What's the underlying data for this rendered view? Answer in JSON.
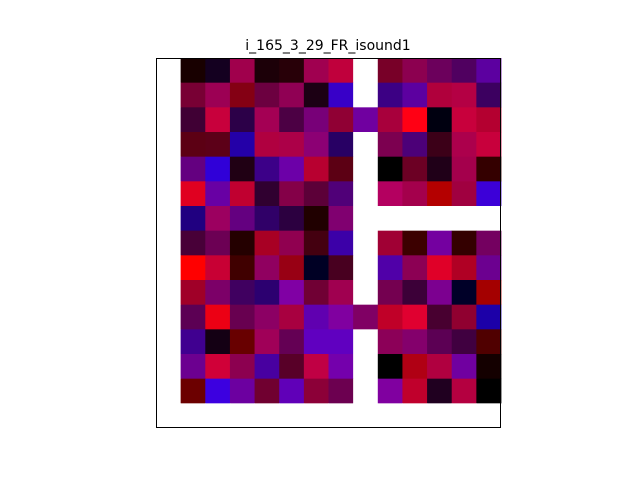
{
  "chart_data": {
    "type": "heatmap",
    "title": "i_165_3_29_FR_isound1",
    "xlabel": "",
    "ylabel": "",
    "axes_visible": false,
    "n_cols": 14,
    "n_rows": 15,
    "empty_color": "#ffffff",
    "frame_color": "#000000",
    "cells": [
      [
        "#ffffff",
        "#180000",
        "#140020",
        "#a0004c",
        "#1c0008",
        "#280008",
        "#a00050",
        "#c0003c",
        "#ffffff",
        "#780028",
        "#8c0050",
        "#6c005c",
        "#500060",
        "#5c00a0"
      ],
      [
        "#ffffff",
        "#780034",
        "#9c0054",
        "#840014",
        "#6c0040",
        "#900054",
        "#1c0014",
        "#3800c8",
        "#ffffff",
        "#3c0084",
        "#5c00a0",
        "#b0003c",
        "#b40044",
        "#3c0060"
      ],
      [
        "#ffffff",
        "#400034",
        "#c8003c",
        "#2c0048",
        "#a40054",
        "#4c0044",
        "#780078",
        "#900034",
        "#7000a0",
        "#a8003c",
        "#ff0014",
        "#000010",
        "#c8003c",
        "#b40030"
      ],
      [
        "#ffffff",
        "#5c0014",
        "#5c0018",
        "#2400a8",
        "#b00040",
        "#ac0048",
        "#8c0074",
        "#280064",
        "#ffffff",
        "#7c0050",
        "#4c0078",
        "#3c0018",
        "#ac004c",
        "#c8003c"
      ],
      [
        "#ffffff",
        "#640080",
        "#3000d8",
        "#200014",
        "#3c0088",
        "#6c00a8",
        "#b80030",
        "#5c0014",
        "#ffffff",
        "#000000",
        "#6c0024",
        "#200018",
        "#a4004c",
        "#340000"
      ],
      [
        "#ffffff",
        "#e00020",
        "#6800a4",
        "#c00030",
        "#300030",
        "#840048",
        "#5c0038",
        "#500078",
        "#ffffff",
        "#b40060",
        "#a4004c",
        "#b40000",
        "#a00040",
        "#3c00d8"
      ],
      [
        "#ffffff",
        "#200080",
        "#9c0060",
        "#640080",
        "#300068",
        "#2c0040",
        "#200000",
        "#800070",
        "#ffffff",
        "#ffffff",
        "#ffffff",
        "#ffffff",
        "#ffffff",
        "#ffffff"
      ],
      [
        "#ffffff",
        "#480038",
        "#6c0054",
        "#240000",
        "#a80024",
        "#900050",
        "#440010",
        "#3c00a8",
        "#ffffff",
        "#a00034",
        "#3c0000",
        "#7400a0",
        "#340000",
        "#740060"
      ],
      [
        "#ffffff",
        "#ff0000",
        "#c80034",
        "#400000",
        "#900060",
        "#980014",
        "#000024",
        "#480020",
        "#ffffff",
        "#5000a8",
        "#8c0054",
        "#e00028",
        "#b00024",
        "#6c0090"
      ],
      [
        "#ffffff",
        "#a00028",
        "#7c0068",
        "#400060",
        "#2c0070",
        "#8000a4",
        "#700034",
        "#a00050",
        "#ffffff",
        "#740050",
        "#3c0038",
        "#7c0090",
        "#000028",
        "#a40000"
      ],
      [
        "#ffffff",
        "#5c0054",
        "#ec0014",
        "#680050",
        "#8c0064",
        "#a80040",
        "#6000b0",
        "#8000a0",
        "#800064",
        "#c00028",
        "#e00030",
        "#480030",
        "#900030",
        "#1c00a8"
      ],
      [
        "#ffffff",
        "#400090",
        "#140014",
        "#680000",
        "#a00058",
        "#640054",
        "#6000c0",
        "#6000c0",
        "#ffffff",
        "#8c0058",
        "#84006c",
        "#5c0054",
        "#400040",
        "#500000"
      ],
      [
        "#ffffff",
        "#6c0090",
        "#d00038",
        "#8c0050",
        "#4800a0",
        "#580028",
        "#c00044",
        "#7400ac",
        "#ffffff",
        "#000000",
        "#b00014",
        "#b00040",
        "#7000a0",
        "#140000"
      ],
      [
        "#ffffff",
        "#6c0000",
        "#3c00e0",
        "#6c00a0",
        "#700030",
        "#6000b8",
        "#8c0038",
        "#6c0050",
        "#ffffff",
        "#8000a0",
        "#c0002c",
        "#200020",
        "#b40040",
        "#000000"
      ],
      [
        "#ffffff",
        "#ffffff",
        "#ffffff",
        "#ffffff",
        "#ffffff",
        "#ffffff",
        "#ffffff",
        "#ffffff",
        "#ffffff",
        "#ffffff",
        "#ffffff",
        "#ffffff",
        "#ffffff",
        "#ffffff"
      ]
    ]
  }
}
